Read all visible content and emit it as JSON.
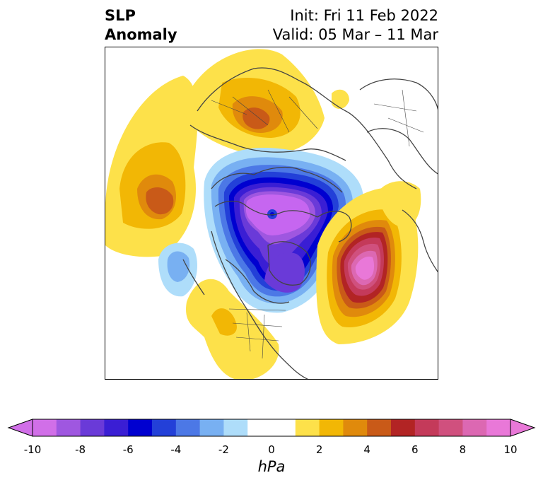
{
  "title": {
    "left_line1": "SLP",
    "left_line2": "Anomaly",
    "right_line1": "Init: Fri 11 Feb 2022",
    "right_line2": "Valid: 05 Mar – 11 Mar"
  },
  "colorbar": {
    "unit": "hPa",
    "ticks": [
      "-10",
      "-8",
      "-6",
      "-4",
      "-2",
      "0",
      "2",
      "4",
      "6",
      "8",
      "10"
    ],
    "colors": [
      "#d16fe8",
      "#9f57e0",
      "#6a3ad8",
      "#3a1ed4",
      "#0000d0",
      "#2340d8",
      "#4c78e6",
      "#78b0f2",
      "#aeddfa",
      "#ffffff",
      "#ffffff",
      "#fde14a",
      "#f2b705",
      "#e08a0c",
      "#c95a18",
      "#b22424",
      "#c43a5a",
      "#d0507e",
      "#dc68b2",
      "#e978d8"
    ]
  },
  "map": {
    "projection": "north-polar-stereographic",
    "feature_colors": {
      "coastline": "#444444",
      "low_core": "#c666f0",
      "high_core": "#e978d8"
    }
  }
}
